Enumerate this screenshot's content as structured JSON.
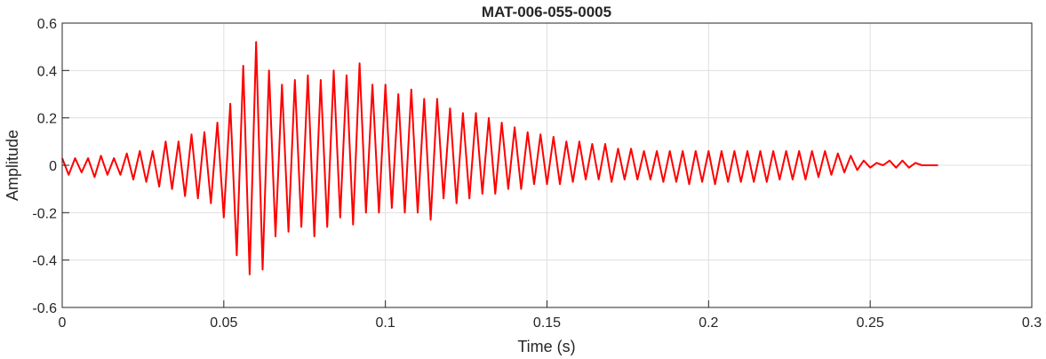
{
  "chart_data": {
    "type": "line",
    "title": "MAT-006-055-0005",
    "xlabel": "Time (s)",
    "ylabel": "Amplitude",
    "xlim": [
      0,
      0.3
    ],
    "ylim": [
      -0.6,
      0.6
    ],
    "xticks": [
      0,
      0.05,
      0.1,
      0.15,
      0.2,
      0.25,
      0.3
    ],
    "xtick_labels": [
      "0",
      "0.05",
      "0.1",
      "0.15",
      "0.2",
      "0.25",
      "0.3"
    ],
    "yticks": [
      -0.6,
      -0.4,
      -0.2,
      0,
      0.2,
      0.4,
      0.6
    ],
    "ytick_labels": [
      "-0.6",
      "-0.4",
      "-0.2",
      "0",
      "0.2",
      "0.4",
      "0.6"
    ],
    "grid": true,
    "line_color": "#ff0000",
    "series": [
      {
        "x": [
          0,
          0.002,
          0.004,
          0.006,
          0.008,
          0.01,
          0.012,
          0.014,
          0.016,
          0.018,
          0.02,
          0.022,
          0.024,
          0.026,
          0.028,
          0.03,
          0.032,
          0.034,
          0.036,
          0.038,
          0.04,
          0.042,
          0.044,
          0.046,
          0.048,
          0.05,
          0.052,
          0.054,
          0.056,
          0.058,
          0.06,
          0.062,
          0.064,
          0.066,
          0.068,
          0.07,
          0.072,
          0.074,
          0.076,
          0.078,
          0.08,
          0.082,
          0.084,
          0.086,
          0.088,
          0.09,
          0.092,
          0.094,
          0.096,
          0.098,
          0.1,
          0.102,
          0.104,
          0.106,
          0.108,
          0.11,
          0.112,
          0.114,
          0.116,
          0.118,
          0.12,
          0.122,
          0.124,
          0.126,
          0.128,
          0.13,
          0.132,
          0.134,
          0.136,
          0.138,
          0.14,
          0.142,
          0.144,
          0.146,
          0.148,
          0.15,
          0.152,
          0.154,
          0.156,
          0.158,
          0.16,
          0.162,
          0.164,
          0.166,
          0.168,
          0.17,
          0.172,
          0.174,
          0.176,
          0.178,
          0.18,
          0.182,
          0.184,
          0.186,
          0.188,
          0.19,
          0.192,
          0.194,
          0.196,
          0.198,
          0.2,
          0.202,
          0.204,
          0.206,
          0.208,
          0.21,
          0.212,
          0.214,
          0.216,
          0.218,
          0.22,
          0.222,
          0.224,
          0.226,
          0.228,
          0.23,
          0.232,
          0.234,
          0.236,
          0.238,
          0.24,
          0.242,
          0.244,
          0.246,
          0.248,
          0.25,
          0.252,
          0.254,
          0.256,
          0.258,
          0.26,
          0.262,
          0.264,
          0.266,
          0.268,
          0.27,
          0.271
        ],
        "y": [
          0.03,
          -0.04,
          0.03,
          -0.03,
          0.03,
          -0.05,
          0.04,
          -0.04,
          0.03,
          -0.04,
          0.05,
          -0.06,
          0.06,
          -0.07,
          0.06,
          -0.09,
          0.1,
          -0.1,
          0.1,
          -0.13,
          0.13,
          -0.14,
          0.14,
          -0.16,
          0.18,
          -0.22,
          0.26,
          -0.38,
          0.42,
          -0.46,
          0.52,
          -0.44,
          0.4,
          -0.3,
          0.34,
          -0.28,
          0.36,
          -0.26,
          0.38,
          -0.3,
          0.36,
          -0.26,
          0.4,
          -0.22,
          0.38,
          -0.25,
          0.43,
          -0.2,
          0.34,
          -0.2,
          0.34,
          -0.18,
          0.3,
          -0.2,
          0.32,
          -0.2,
          0.28,
          -0.23,
          0.28,
          -0.14,
          0.24,
          -0.16,
          0.22,
          -0.14,
          0.22,
          -0.12,
          0.2,
          -0.12,
          0.18,
          -0.1,
          0.16,
          -0.1,
          0.14,
          -0.08,
          0.13,
          -0.08,
          0.12,
          -0.08,
          0.1,
          -0.07,
          0.1,
          -0.06,
          0.09,
          -0.06,
          0.09,
          -0.07,
          0.07,
          -0.06,
          0.07,
          -0.06,
          0.06,
          -0.06,
          0.06,
          -0.07,
          0.06,
          -0.07,
          0.06,
          -0.08,
          0.06,
          -0.07,
          0.06,
          -0.08,
          0.06,
          -0.07,
          0.06,
          -0.07,
          0.06,
          -0.07,
          0.06,
          -0.07,
          0.06,
          -0.06,
          0.06,
          -0.06,
          0.06,
          -0.06,
          0.06,
          -0.05,
          0.06,
          -0.04,
          0.05,
          -0.03,
          0.04,
          -0.02,
          0.02,
          -0.01,
          0.01,
          0.0,
          0.02,
          -0.01,
          0.02,
          -0.01,
          0.01,
          0.0,
          0.0,
          0.0,
          0.0
        ]
      }
    ]
  }
}
